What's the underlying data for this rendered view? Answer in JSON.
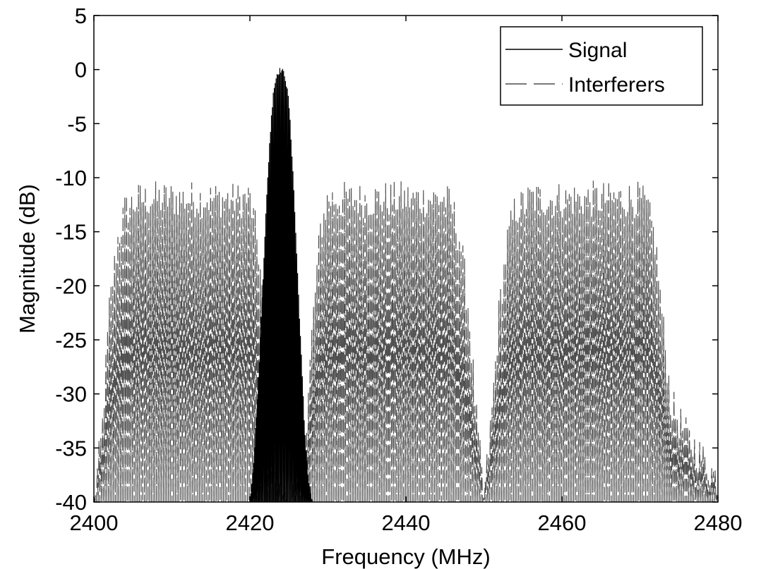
{
  "chart_data": {
    "type": "line",
    "title": "",
    "xlabel": "Frequency (MHz)",
    "ylabel": "Magnitude (dB)",
    "xlim": [
      2400,
      2480
    ],
    "ylim": [
      -40,
      5
    ],
    "x_ticks": [
      2400,
      2420,
      2440,
      2460,
      2480
    ],
    "y_ticks": [
      5,
      0,
      -5,
      -10,
      -15,
      -20,
      -25,
      -30,
      -35,
      -40
    ],
    "x_tick_labels": [
      "2400",
      "2420",
      "2440",
      "2460",
      "2480"
    ],
    "y_tick_labels": [
      "5",
      "0",
      "-5",
      "-10",
      "-15",
      "-20",
      "-25",
      "-30",
      "-35",
      "-40"
    ],
    "grid": false,
    "legend_position": "top-right",
    "series": [
      {
        "name": "Signal",
        "style": "solid",
        "color": "#000000",
        "x": [
          2420.0,
          2420.5,
          2421.0,
          2421.5,
          2422.0,
          2422.5,
          2423.0,
          2423.5,
          2424.0,
          2424.5,
          2425.0,
          2425.5,
          2426.0,
          2426.5,
          2427.0,
          2427.5,
          2428.0
        ],
        "y": [
          -40,
          -36,
          -30,
          -22,
          -14,
          -7,
          -2,
          -0.3,
          0,
          -0.5,
          -3,
          -9,
          -17,
          -25,
          -33,
          -38,
          -40
        ]
      },
      {
        "name": "Interferers",
        "style": "dashed",
        "color": "#4d4d4d",
        "x": [
          2400,
          2401,
          2402,
          2403,
          2404,
          2406,
          2410,
          2415,
          2420,
          2421,
          2422,
          2423,
          2425,
          2427,
          2428,
          2429,
          2430,
          2432,
          2435,
          2440,
          2445,
          2446,
          2447,
          2448,
          2449,
          2450,
          2451,
          2452,
          2453,
          2454,
          2456,
          2460,
          2465,
          2470,
          2471,
          2472,
          2473,
          2474,
          2476,
          2478,
          2480
        ],
        "y": [
          -40,
          -34,
          -22,
          -16,
          -13,
          -12,
          -12,
          -12,
          -12,
          -16,
          -24,
          -36,
          -40,
          -36,
          -24,
          -15,
          -12,
          -12,
          -12,
          -12,
          -12,
          -13,
          -16,
          -22,
          -32,
          -40,
          -32,
          -22,
          -16,
          -13,
          -12,
          -12,
          -12,
          -12,
          -13,
          -16,
          -24,
          -31,
          -34,
          -36,
          -38
        ]
      }
    ]
  }
}
